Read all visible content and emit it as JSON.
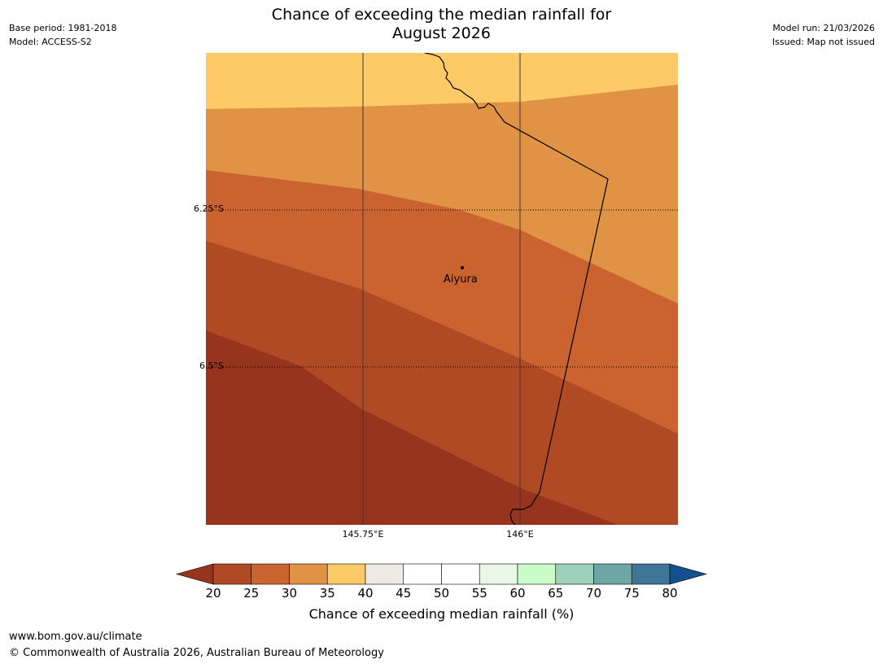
{
  "title_line1": "Chance of exceeding the median rainfall for",
  "title_line2": "August 2026",
  "meta_left": {
    "base_period": "Base period: 1981-2018",
    "model": "Model: ACCESS-S2"
  },
  "meta_right": {
    "model_run": "Model run: 21/03/2026",
    "issued": "Issued: Map not issued"
  },
  "axes": {
    "lat_labels": [
      "6.25°S",
      "6.5°S"
    ],
    "lon_labels": [
      "145.75°E",
      "146°E"
    ]
  },
  "place": {
    "name": "Aiyura"
  },
  "colorbar": {
    "ticks": [
      "20",
      "25",
      "30",
      "35",
      "40",
      "45",
      "50",
      "55",
      "60",
      "65",
      "70",
      "75",
      "80"
    ],
    "colors": [
      "#97341e",
      "#b04a24",
      "#ca6330",
      "#e09245",
      "#fdca66",
      "#ede9e5",
      "#ffffff",
      "#ffffff",
      "#e8f7e6",
      "#c9fcc9",
      "#9dd1bb",
      "#6ea5a5",
      "#3f7599",
      "#14508d"
    ],
    "title": "Chance of exceeding median rainfall (%)"
  },
  "footer": {
    "url": "www.bom.gov.au/climate",
    "copyright": "© Commonwealth of Australia 2026, Australian Bureau of Meteorology"
  }
}
